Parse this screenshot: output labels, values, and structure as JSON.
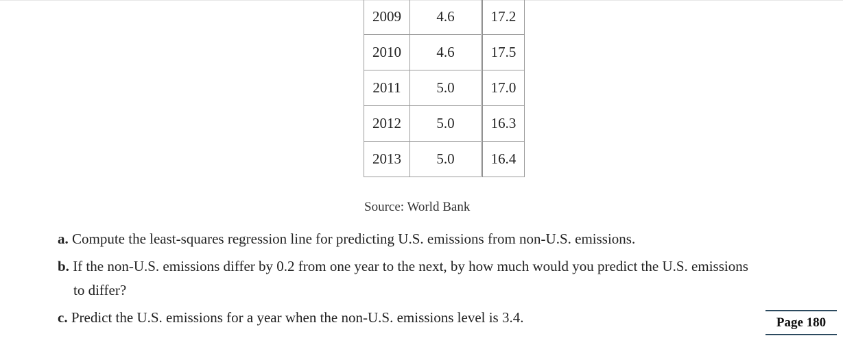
{
  "table": {
    "rows": [
      {
        "year": "2009",
        "non_us": "4.6",
        "us": "17.2"
      },
      {
        "year": "2010",
        "non_us": "4.6",
        "us": "17.5"
      },
      {
        "year": "2011",
        "non_us": "5.0",
        "us": "17.0"
      },
      {
        "year": "2012",
        "non_us": "5.0",
        "us": "16.3"
      },
      {
        "year": "2013",
        "non_us": "5.0",
        "us": "16.4"
      }
    ]
  },
  "source": "Source: World Bank",
  "questions": {
    "a": {
      "label": "a.",
      "text": "Compute the least-squares regression line for predicting U.S. emissions from non-U.S. emissions."
    },
    "b": {
      "label": "b.",
      "text": "If the non-U.S. emissions differ by 0.2 from one year to the next, by how much would you predict the U.S. emissions",
      "text_cont": "to differ?"
    },
    "c": {
      "label": "c.",
      "text": "Predict the U.S. emissions for a year when the non-U.S. emissions level is 3.4."
    }
  },
  "page_label": "Page 180"
}
